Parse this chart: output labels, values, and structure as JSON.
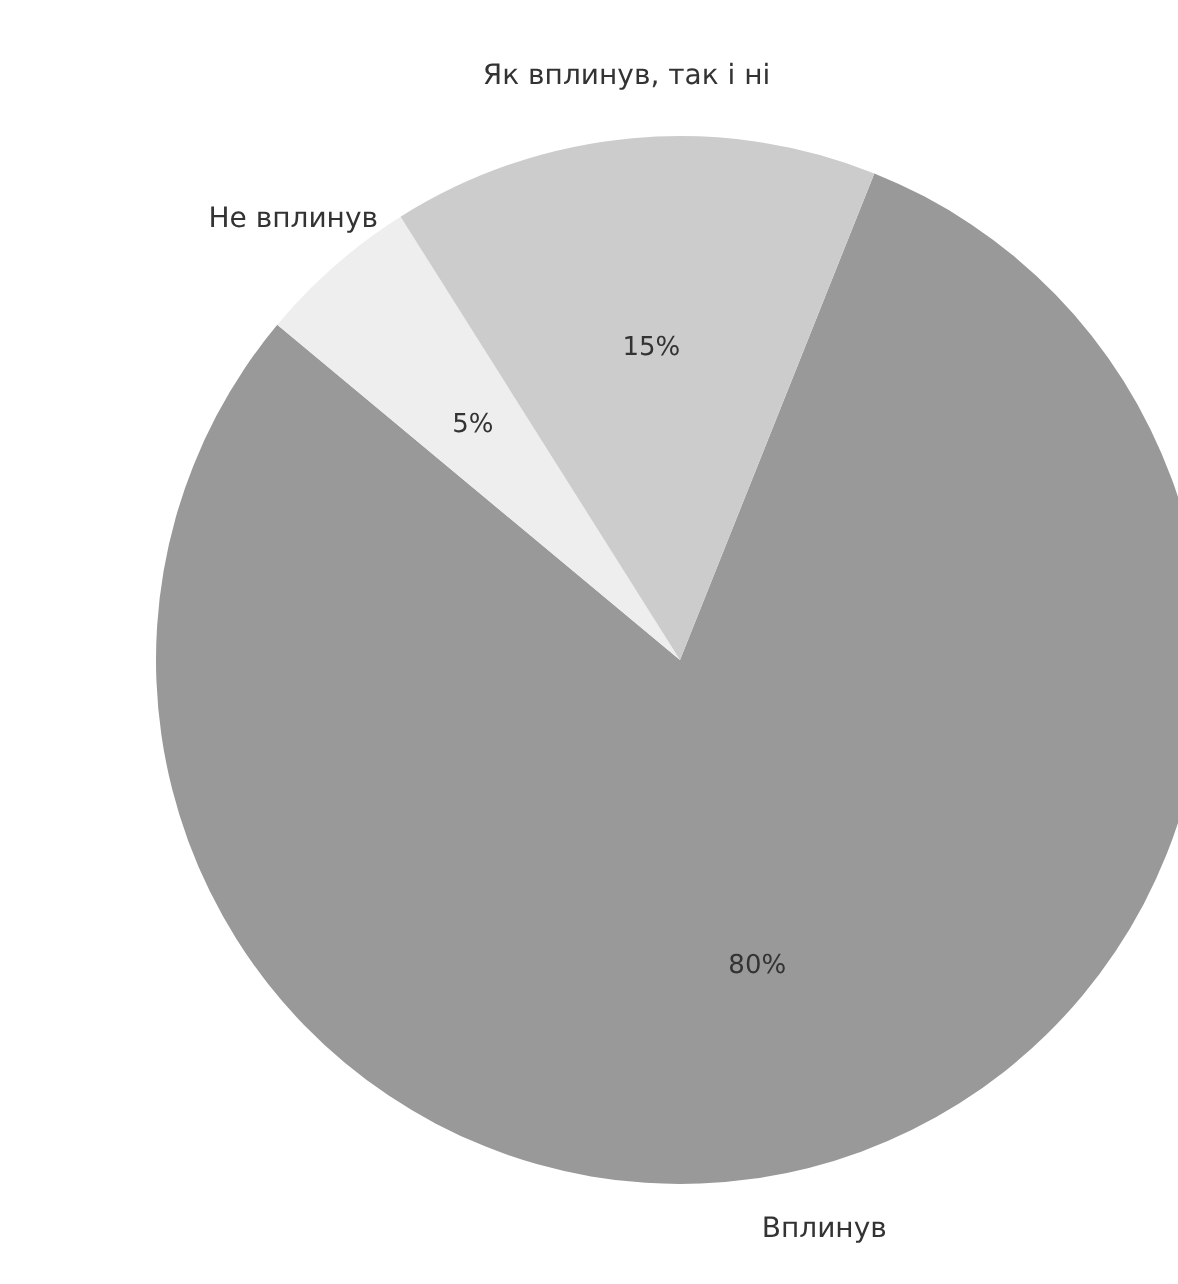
{
  "chart_data": {
    "type": "pie",
    "categories": [
      "Вплинув",
      "Не вплинув",
      "Як вплинув, так і ні"
    ],
    "values": [
      80,
      5,
      15
    ],
    "colors": [
      "#999999",
      "#eeeeee",
      "#cccccc"
    ],
    "value_labels": [
      "80%",
      "5%",
      "15%"
    ]
  }
}
